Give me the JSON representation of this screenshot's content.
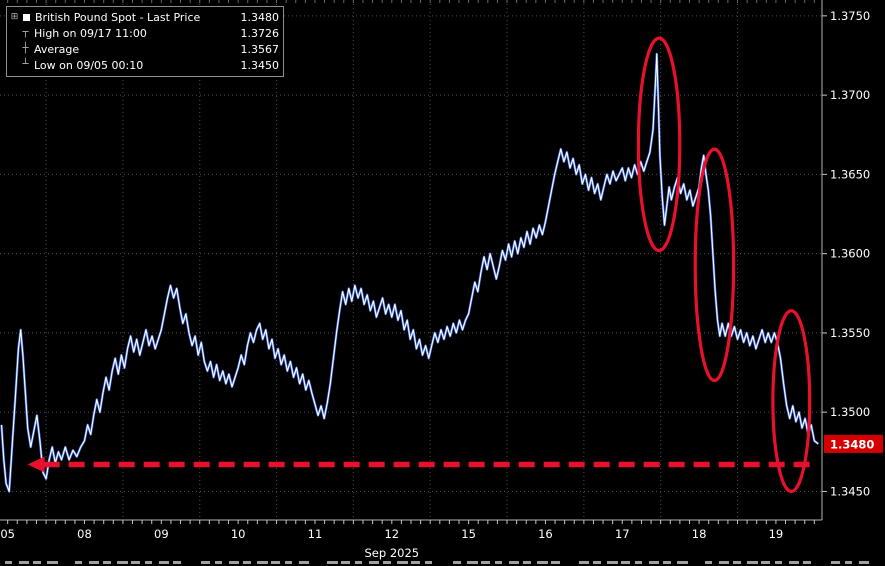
{
  "colors": {
    "background": "#000000",
    "grid": "#4d4d4d",
    "axis_text": "#ffffff",
    "line": "#ffffff",
    "line_underlay": "#3f6fe8",
    "annotation_red": "#e8112d",
    "price_label_bg": "#d40000",
    "price_label_fg": "#ffffff"
  },
  "legend": {
    "expander_icon": "⊞",
    "rows": [
      {
        "icon": "■",
        "label": "British Pound Spot - Last Price",
        "value": "1.3480"
      },
      {
        "icon": "┬",
        "label": "High on 09/17 11:00",
        "value": "1.3726"
      },
      {
        "icon": "┼",
        "label": "Average",
        "value": "1.3567"
      },
      {
        "icon": "┴",
        "label": "Low on 09/05 00:10",
        "value": "1.3450"
      }
    ]
  },
  "chart_data": {
    "type": "line",
    "title": "British Pound Spot - Last Price",
    "xlabel": "Sep 2025",
    "ylabel": "",
    "legend_position": "top-left",
    "grid": "dotted",
    "x_tick_labels": [
      "05",
      "08",
      "09",
      "10",
      "11",
      "12",
      "15",
      "16",
      "17",
      "18",
      "19"
    ],
    "y_ticks": [
      1.345,
      1.35,
      1.355,
      1.36,
      1.365,
      1.37,
      1.375
    ],
    "xlim": [
      -0.1,
      10.6
    ],
    "ylim": [
      1.3432,
      1.376
    ],
    "stats": {
      "last": "1.3480",
      "high": "1.3726",
      "high_time": "09/17 11:00",
      "average": "1.3567",
      "low": "1.3450",
      "low_time": "09/05 00:10"
    },
    "annotations": {
      "arrow": {
        "price": 1.3467,
        "x_from": 10.47,
        "x_to": 0.26,
        "color": "#e8112d"
      },
      "ellipses": [
        {
          "cx": 8.48,
          "cy": 1.3669,
          "rx": 0.27,
          "ry": 0.0067
        },
        {
          "cx": 9.2,
          "cy": 1.3593,
          "rx": 0.25,
          "ry": 0.0073
        },
        {
          "cx": 10.2,
          "cy": 1.3507,
          "rx": 0.24,
          "ry": 0.0057
        }
      ],
      "last_price_label": {
        "text": "1.3480",
        "price": 1.348
      }
    },
    "series": [
      {
        "name": "British Pound Spot - Last Price",
        "color": "#ffffff",
        "underlay_color": "#3f6fe8",
        "points": [
          [
            -0.08,
            1.3492
          ],
          [
            -0.05,
            1.347
          ],
          [
            -0.02,
            1.3455
          ],
          [
            0.02,
            1.345
          ],
          [
            0.06,
            1.348
          ],
          [
            0.1,
            1.351
          ],
          [
            0.14,
            1.354
          ],
          [
            0.17,
            1.3552
          ],
          [
            0.2,
            1.3535
          ],
          [
            0.23,
            1.3512
          ],
          [
            0.26,
            1.349
          ],
          [
            0.3,
            1.3478
          ],
          [
            0.34,
            1.3488
          ],
          [
            0.38,
            1.3498
          ],
          [
            0.42,
            1.3482
          ],
          [
            0.46,
            1.3462
          ],
          [
            0.5,
            1.3458
          ],
          [
            0.54,
            1.347
          ],
          [
            0.58,
            1.3478
          ],
          [
            0.62,
            1.3468
          ],
          [
            0.66,
            1.3475
          ],
          [
            0.7,
            1.347
          ],
          [
            0.75,
            1.3478
          ],
          [
            0.8,
            1.347
          ],
          [
            0.85,
            1.3476
          ],
          [
            0.9,
            1.3472
          ],
          [
            0.95,
            1.3478
          ],
          [
            1.0,
            1.3482
          ],
          [
            1.04,
            1.3492
          ],
          [
            1.08,
            1.3486
          ],
          [
            1.12,
            1.3498
          ],
          [
            1.16,
            1.3508
          ],
          [
            1.2,
            1.35
          ],
          [
            1.24,
            1.3512
          ],
          [
            1.28,
            1.3522
          ],
          [
            1.32,
            1.3514
          ],
          [
            1.36,
            1.3526
          ],
          [
            1.4,
            1.3534
          ],
          [
            1.44,
            1.3524
          ],
          [
            1.48,
            1.3536
          ],
          [
            1.52,
            1.3528
          ],
          [
            1.56,
            1.354
          ],
          [
            1.6,
            1.3548
          ],
          [
            1.64,
            1.3538
          ],
          [
            1.68,
            1.3546
          ],
          [
            1.72,
            1.3536
          ],
          [
            1.76,
            1.3544
          ],
          [
            1.8,
            1.3552
          ],
          [
            1.84,
            1.3542
          ],
          [
            1.88,
            1.3548
          ],
          [
            1.92,
            1.354
          ],
          [
            1.96,
            1.3546
          ],
          [
            2.0,
            1.3552
          ],
          [
            2.04,
            1.3562
          ],
          [
            2.08,
            1.3572
          ],
          [
            2.12,
            1.358
          ],
          [
            2.16,
            1.3572
          ],
          [
            2.2,
            1.3578
          ],
          [
            2.24,
            1.3566
          ],
          [
            2.28,
            1.3556
          ],
          [
            2.32,
            1.3562
          ],
          [
            2.36,
            1.355
          ],
          [
            2.4,
            1.3542
          ],
          [
            2.44,
            1.3548
          ],
          [
            2.48,
            1.3536
          ],
          [
            2.52,
            1.3544
          ],
          [
            2.56,
            1.3532
          ],
          [
            2.6,
            1.3526
          ],
          [
            2.64,
            1.3532
          ],
          [
            2.68,
            1.3522
          ],
          [
            2.72,
            1.353
          ],
          [
            2.76,
            1.352
          ],
          [
            2.8,
            1.3526
          ],
          [
            2.84,
            1.3518
          ],
          [
            2.88,
            1.3524
          ],
          [
            2.92,
            1.3516
          ],
          [
            2.96,
            1.3522
          ],
          [
            3.0,
            1.3528
          ],
          [
            3.04,
            1.3536
          ],
          [
            3.08,
            1.353
          ],
          [
            3.12,
            1.3542
          ],
          [
            3.16,
            1.355
          ],
          [
            3.2,
            1.3544
          ],
          [
            3.24,
            1.3552
          ],
          [
            3.28,
            1.3556
          ],
          [
            3.32,
            1.3546
          ],
          [
            3.36,
            1.3552
          ],
          [
            3.4,
            1.354
          ],
          [
            3.44,
            1.3546
          ],
          [
            3.48,
            1.3534
          ],
          [
            3.52,
            1.354
          ],
          [
            3.56,
            1.353
          ],
          [
            3.6,
            1.3536
          ],
          [
            3.64,
            1.3526
          ],
          [
            3.68,
            1.3532
          ],
          [
            3.72,
            1.3522
          ],
          [
            3.76,
            1.3528
          ],
          [
            3.8,
            1.3518
          ],
          [
            3.84,
            1.3524
          ],
          [
            3.88,
            1.3514
          ],
          [
            3.92,
            1.352
          ],
          [
            3.96,
            1.3512
          ],
          [
            4.0,
            1.3505
          ],
          [
            4.04,
            1.3498
          ],
          [
            4.08,
            1.3504
          ],
          [
            4.12,
            1.3496
          ],
          [
            4.16,
            1.3506
          ],
          [
            4.2,
            1.3518
          ],
          [
            4.24,
            1.3534
          ],
          [
            4.28,
            1.355
          ],
          [
            4.32,
            1.3564
          ],
          [
            4.36,
            1.3576
          ],
          [
            4.4,
            1.3568
          ],
          [
            4.44,
            1.3578
          ],
          [
            4.48,
            1.357
          ],
          [
            4.52,
            1.358
          ],
          [
            4.56,
            1.3572
          ],
          [
            4.6,
            1.3578
          ],
          [
            4.64,
            1.3568
          ],
          [
            4.68,
            1.3574
          ],
          [
            4.72,
            1.3564
          ],
          [
            4.76,
            1.357
          ],
          [
            4.8,
            1.356
          ],
          [
            4.84,
            1.3566
          ],
          [
            4.88,
            1.3572
          ],
          [
            4.92,
            1.3562
          ],
          [
            4.96,
            1.3568
          ],
          [
            5.0,
            1.356
          ],
          [
            5.04,
            1.3568
          ],
          [
            5.08,
            1.3558
          ],
          [
            5.12,
            1.3564
          ],
          [
            5.16,
            1.3552
          ],
          [
            5.2,
            1.3558
          ],
          [
            5.24,
            1.3546
          ],
          [
            5.28,
            1.3552
          ],
          [
            5.32,
            1.354
          ],
          [
            5.36,
            1.3546
          ],
          [
            5.4,
            1.3536
          ],
          [
            5.44,
            1.3542
          ],
          [
            5.48,
            1.3534
          ],
          [
            5.52,
            1.3542
          ],
          [
            5.56,
            1.355
          ],
          [
            5.6,
            1.3544
          ],
          [
            5.64,
            1.3552
          ],
          [
            5.68,
            1.3546
          ],
          [
            5.72,
            1.3554
          ],
          [
            5.76,
            1.3548
          ],
          [
            5.8,
            1.3556
          ],
          [
            5.84,
            1.355
          ],
          [
            5.88,
            1.3558
          ],
          [
            5.92,
            1.3552
          ],
          [
            5.96,
            1.3558
          ],
          [
            6.0,
            1.3562
          ],
          [
            6.04,
            1.3572
          ],
          [
            6.08,
            1.3582
          ],
          [
            6.12,
            1.3576
          ],
          [
            6.16,
            1.3588
          ],
          [
            6.2,
            1.3598
          ],
          [
            6.24,
            1.359
          ],
          [
            6.28,
            1.36
          ],
          [
            6.32,
            1.3592
          ],
          [
            6.36,
            1.3584
          ],
          [
            6.4,
            1.3592
          ],
          [
            6.44,
            1.3602
          ],
          [
            6.48,
            1.3596
          ],
          [
            6.52,
            1.3606
          ],
          [
            6.56,
            1.3598
          ],
          [
            6.6,
            1.3608
          ],
          [
            6.64,
            1.36
          ],
          [
            6.68,
            1.361
          ],
          [
            6.72,
            1.3604
          ],
          [
            6.76,
            1.3614
          ],
          [
            6.8,
            1.3606
          ],
          [
            6.84,
            1.3616
          ],
          [
            6.88,
            1.361
          ],
          [
            6.92,
            1.3618
          ],
          [
            6.96,
            1.3612
          ],
          [
            7.0,
            1.362
          ],
          [
            7.04,
            1.363
          ],
          [
            7.08,
            1.364
          ],
          [
            7.12,
            1.365
          ],
          [
            7.16,
            1.3658
          ],
          [
            7.2,
            1.3666
          ],
          [
            7.24,
            1.3658
          ],
          [
            7.28,
            1.3664
          ],
          [
            7.32,
            1.3654
          ],
          [
            7.36,
            1.366
          ],
          [
            7.4,
            1.365
          ],
          [
            7.44,
            1.3656
          ],
          [
            7.48,
            1.3644
          ],
          [
            7.52,
            1.365
          ],
          [
            7.56,
            1.364
          ],
          [
            7.6,
            1.3648
          ],
          [
            7.64,
            1.3638
          ],
          [
            7.68,
            1.3644
          ],
          [
            7.72,
            1.3634
          ],
          [
            7.76,
            1.3642
          ],
          [
            7.8,
            1.365
          ],
          [
            7.84,
            1.3644
          ],
          [
            7.88,
            1.3652
          ],
          [
            7.92,
            1.3646
          ],
          [
            7.96,
            1.365
          ],
          [
            8.0,
            1.3654
          ],
          [
            8.04,
            1.3646
          ],
          [
            8.08,
            1.3654
          ],
          [
            8.12,
            1.3648
          ],
          [
            8.16,
            1.3656
          ],
          [
            8.2,
            1.365
          ],
          [
            8.24,
            1.3658
          ],
          [
            8.28,
            1.3652
          ],
          [
            8.32,
            1.3658
          ],
          [
            8.36,
            1.3664
          ],
          [
            8.4,
            1.3678
          ],
          [
            8.43,
            1.3706
          ],
          [
            8.45,
            1.3726
          ],
          [
            8.47,
            1.3694
          ],
          [
            8.49,
            1.3662
          ],
          [
            8.52,
            1.3636
          ],
          [
            8.55,
            1.3618
          ],
          [
            8.58,
            1.363
          ],
          [
            8.61,
            1.3642
          ],
          [
            8.64,
            1.3634
          ],
          [
            8.68,
            1.3642
          ],
          [
            8.72,
            1.3648
          ],
          [
            8.76,
            1.3638
          ],
          [
            8.8,
            1.3644
          ],
          [
            8.84,
            1.3634
          ],
          [
            8.88,
            1.364
          ],
          [
            8.92,
            1.363
          ],
          [
            8.96,
            1.3636
          ],
          [
            9.0,
            1.3642
          ],
          [
            9.03,
            1.3654
          ],
          [
            9.06,
            1.3662
          ],
          [
            9.09,
            1.365
          ],
          [
            9.12,
            1.364
          ],
          [
            9.15,
            1.3624
          ],
          [
            9.18,
            1.36
          ],
          [
            9.21,
            1.3576
          ],
          [
            9.24,
            1.3558
          ],
          [
            9.27,
            1.3548
          ],
          [
            9.3,
            1.3556
          ],
          [
            9.34,
            1.3548
          ],
          [
            9.38,
            1.3556
          ],
          [
            9.42,
            1.3548
          ],
          [
            9.46,
            1.3554
          ],
          [
            9.5,
            1.3546
          ],
          [
            9.54,
            1.3552
          ],
          [
            9.58,
            1.3544
          ],
          [
            9.62,
            1.355
          ],
          [
            9.66,
            1.3542
          ],
          [
            9.7,
            1.3548
          ],
          [
            9.74,
            1.354
          ],
          [
            9.78,
            1.3546
          ],
          [
            9.82,
            1.3552
          ],
          [
            9.86,
            1.3544
          ],
          [
            9.9,
            1.355
          ],
          [
            9.94,
            1.3544
          ],
          [
            9.98,
            1.355
          ],
          [
            10.02,
            1.3544
          ],
          [
            10.06,
            1.3534
          ],
          [
            10.1,
            1.3518
          ],
          [
            10.14,
            1.3504
          ],
          [
            10.18,
            1.3496
          ],
          [
            10.22,
            1.3504
          ],
          [
            10.26,
            1.3494
          ],
          [
            10.3,
            1.35
          ],
          [
            10.34,
            1.349
          ],
          [
            10.38,
            1.3496
          ],
          [
            10.42,
            1.3486
          ],
          [
            10.46,
            1.3492
          ],
          [
            10.5,
            1.3482
          ],
          [
            10.55,
            1.348
          ]
        ]
      }
    ]
  }
}
